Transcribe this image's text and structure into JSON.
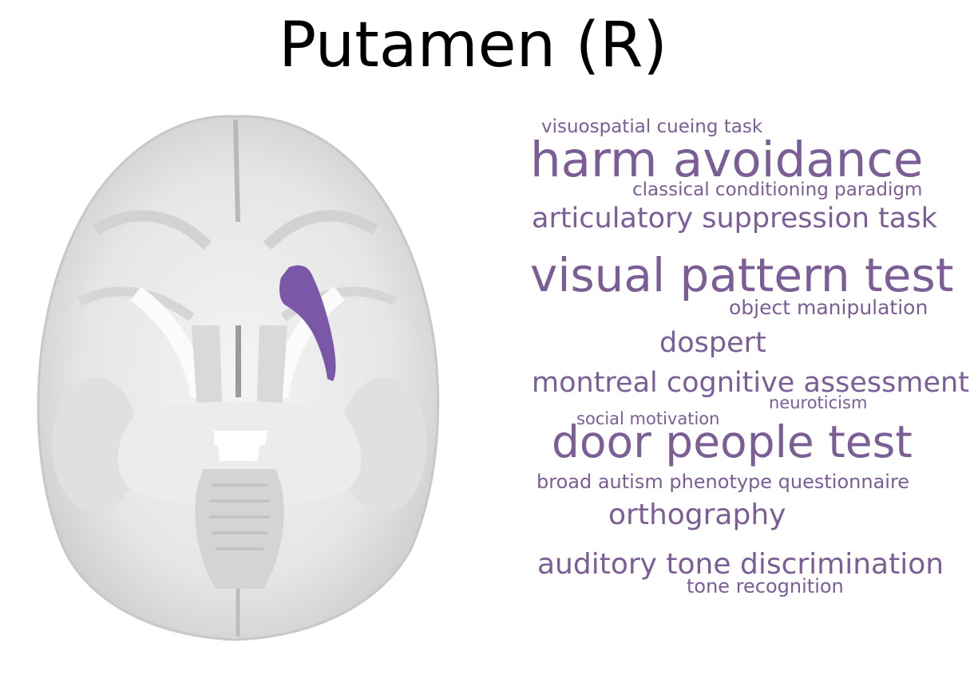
{
  "title": "Putamen (R)",
  "region_color": "#7b57a8",
  "term_color": "#7a5e95",
  "terms": [
    "visuospatial cueing task",
    "harm avoidance",
    "classical conditioning paradigm",
    "articulatory suppression task",
    "visual pattern test",
    "object manipulation",
    "dospert",
    "montreal cognitive assessment",
    "neuroticism",
    "social motivation",
    "door people test",
    "broad autism phenotype questionnaire",
    "orthography",
    "auditory tone discrimination",
    "tone recognition"
  ]
}
